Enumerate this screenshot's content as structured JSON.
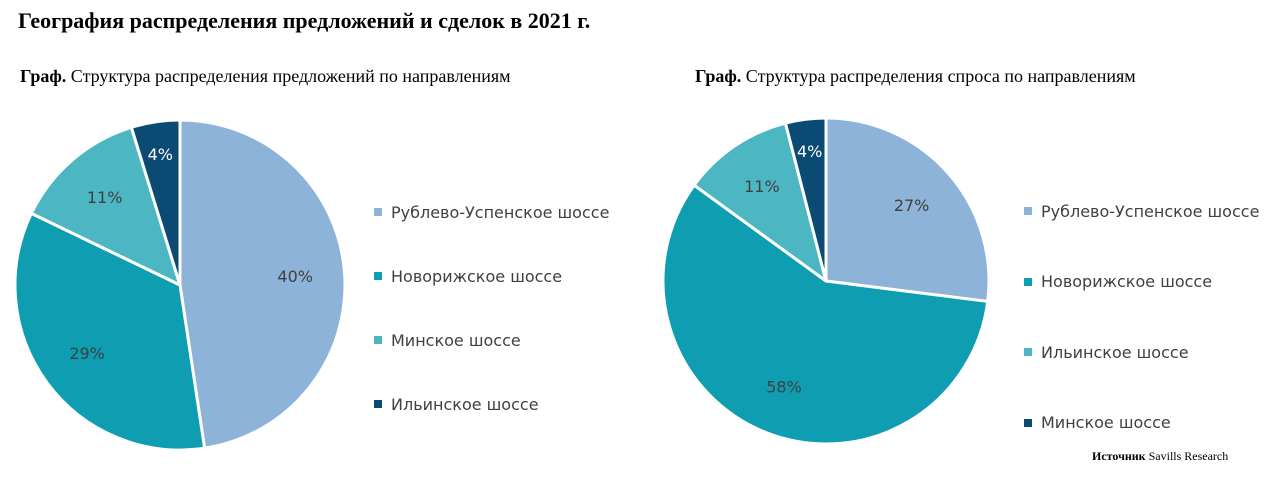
{
  "page": {
    "title": "География распределения предложений и сделок в 2021 г.",
    "source_label": "Источник",
    "source_value": "Savills Research"
  },
  "chart_data": [
    {
      "type": "pie",
      "title_prefix": "Граф.",
      "title": "Структура распределения предложений по направлениям",
      "categories": [
        "Рублево-Успенское шоссе",
        "Новорижское шоссе",
        "Минское шоссе",
        "Ильинское шоссе"
      ],
      "values": [
        40,
        29,
        11,
        4
      ],
      "labels": [
        "40%",
        "29%",
        "11%",
        "4%"
      ],
      "colors": [
        "#8db3d9",
        "#0e9db1",
        "#4cb7c3",
        "#0b4a72"
      ],
      "legend": "right"
    },
    {
      "type": "pie",
      "title_prefix": "Граф.",
      "title": "Структура распределения спроса по направлениям",
      "categories": [
        "Рублево-Успенское шоссе",
        "Новорижское шоссе",
        "Ильинское шоссе",
        "Минское шоссе"
      ],
      "values": [
        27,
        58,
        11,
        4
      ],
      "labels": [
        "27%",
        "58%",
        "11%",
        "4%"
      ],
      "colors": [
        "#8db3d9",
        "#0e9db1",
        "#4cb7c3",
        "#0b4a72"
      ],
      "legend": "right"
    }
  ]
}
